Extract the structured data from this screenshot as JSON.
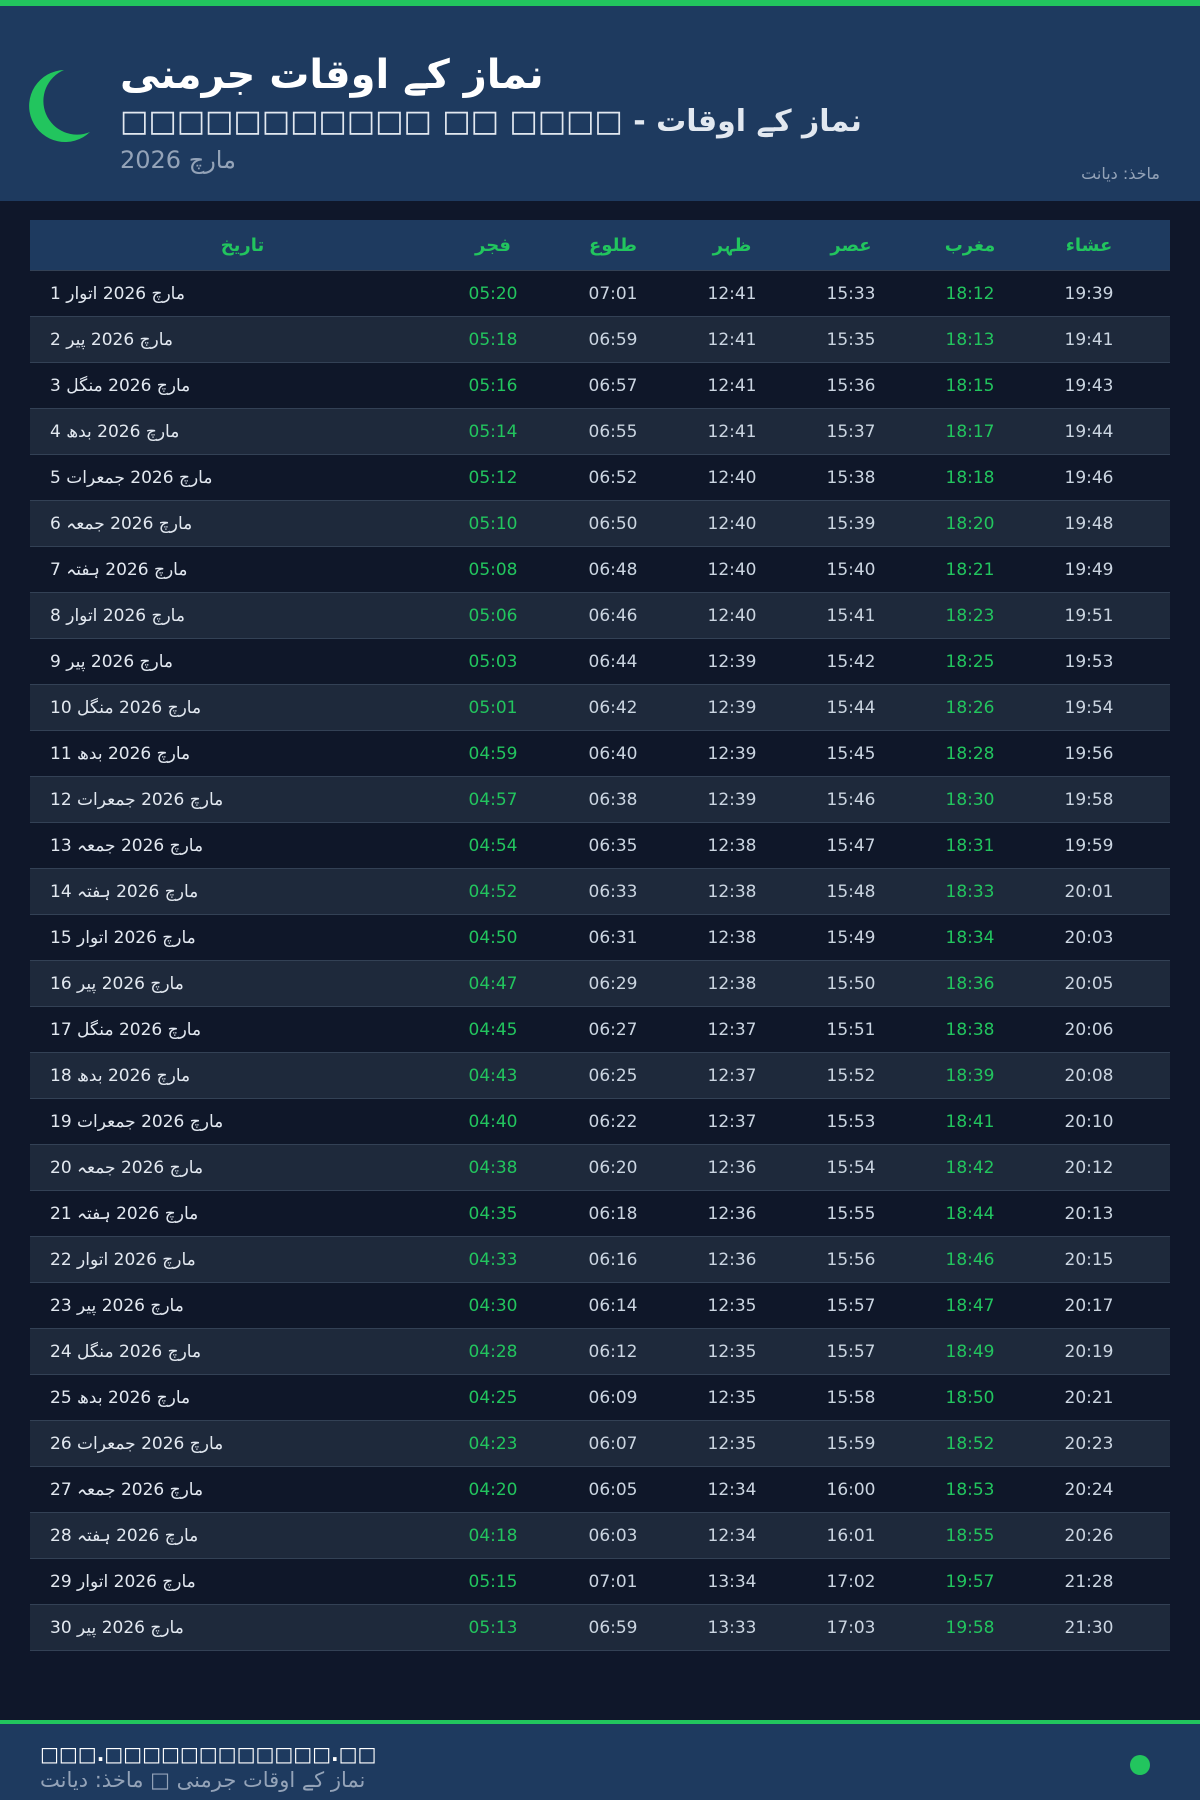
{
  "header": {
    "title": "نماز کے اوقات جرمنی",
    "subtitle": "□□□□□□□□□□□ □□ □□□□ - نماز کے اوقات",
    "month": "مارچ 2026",
    "source": "ماخذ: دیانت"
  },
  "colors": {
    "accent": "#22c55e",
    "header_bg": "#1e3a5f",
    "page_bg": "#0f172a"
  },
  "table": {
    "columns": [
      "تاریخ",
      "فجر",
      "طلوع",
      "ظہر",
      "عصر",
      "مغرب",
      "عشاء"
    ],
    "rows": [
      [
        "1 مارچ 2026 اتوار",
        "05:20",
        "07:01",
        "12:41",
        "15:33",
        "18:12",
        "19:39"
      ],
      [
        "2 مارچ 2026 پیر",
        "05:18",
        "06:59",
        "12:41",
        "15:35",
        "18:13",
        "19:41"
      ],
      [
        "3 مارچ 2026 منگل",
        "05:16",
        "06:57",
        "12:41",
        "15:36",
        "18:15",
        "19:43"
      ],
      [
        "4 مارچ 2026 بدھ",
        "05:14",
        "06:55",
        "12:41",
        "15:37",
        "18:17",
        "19:44"
      ],
      [
        "5 مارچ 2026 جمعرات",
        "05:12",
        "06:52",
        "12:40",
        "15:38",
        "18:18",
        "19:46"
      ],
      [
        "6 مارچ 2026 جمعہ",
        "05:10",
        "06:50",
        "12:40",
        "15:39",
        "18:20",
        "19:48"
      ],
      [
        "7 مارچ 2026 ہفتہ",
        "05:08",
        "06:48",
        "12:40",
        "15:40",
        "18:21",
        "19:49"
      ],
      [
        "8 مارچ 2026 اتوار",
        "05:06",
        "06:46",
        "12:40",
        "15:41",
        "18:23",
        "19:51"
      ],
      [
        "9 مارچ 2026 پیر",
        "05:03",
        "06:44",
        "12:39",
        "15:42",
        "18:25",
        "19:53"
      ],
      [
        "10 مارچ 2026 منگل",
        "05:01",
        "06:42",
        "12:39",
        "15:44",
        "18:26",
        "19:54"
      ],
      [
        "11 مارچ 2026 بدھ",
        "04:59",
        "06:40",
        "12:39",
        "15:45",
        "18:28",
        "19:56"
      ],
      [
        "12 مارچ 2026 جمعرات",
        "04:57",
        "06:38",
        "12:39",
        "15:46",
        "18:30",
        "19:58"
      ],
      [
        "13 مارچ 2026 جمعہ",
        "04:54",
        "06:35",
        "12:38",
        "15:47",
        "18:31",
        "19:59"
      ],
      [
        "14 مارچ 2026 ہفتہ",
        "04:52",
        "06:33",
        "12:38",
        "15:48",
        "18:33",
        "20:01"
      ],
      [
        "15 مارچ 2026 اتوار",
        "04:50",
        "06:31",
        "12:38",
        "15:49",
        "18:34",
        "20:03"
      ],
      [
        "16 مارچ 2026 پیر",
        "04:47",
        "06:29",
        "12:38",
        "15:50",
        "18:36",
        "20:05"
      ],
      [
        "17 مارچ 2026 منگل",
        "04:45",
        "06:27",
        "12:37",
        "15:51",
        "18:38",
        "20:06"
      ],
      [
        "18 مارچ 2026 بدھ",
        "04:43",
        "06:25",
        "12:37",
        "15:52",
        "18:39",
        "20:08"
      ],
      [
        "19 مارچ 2026 جمعرات",
        "04:40",
        "06:22",
        "12:37",
        "15:53",
        "18:41",
        "20:10"
      ],
      [
        "20 مارچ 2026 جمعہ",
        "04:38",
        "06:20",
        "12:36",
        "15:54",
        "18:42",
        "20:12"
      ],
      [
        "21 مارچ 2026 ہفتہ",
        "04:35",
        "06:18",
        "12:36",
        "15:55",
        "18:44",
        "20:13"
      ],
      [
        "22 مارچ 2026 اتوار",
        "04:33",
        "06:16",
        "12:36",
        "15:56",
        "18:46",
        "20:15"
      ],
      [
        "23 مارچ 2026 پیر",
        "04:30",
        "06:14",
        "12:35",
        "15:57",
        "18:47",
        "20:17"
      ],
      [
        "24 مارچ 2026 منگل",
        "04:28",
        "06:12",
        "12:35",
        "15:57",
        "18:49",
        "20:19"
      ],
      [
        "25 مارچ 2026 بدھ",
        "04:25",
        "06:09",
        "12:35",
        "15:58",
        "18:50",
        "20:21"
      ],
      [
        "26 مارچ 2026 جمعرات",
        "04:23",
        "06:07",
        "12:35",
        "15:59",
        "18:52",
        "20:23"
      ],
      [
        "27 مارچ 2026 جمعہ",
        "04:20",
        "06:05",
        "12:34",
        "16:00",
        "18:53",
        "20:24"
      ],
      [
        "28 مارچ 2026 ہفتہ",
        "04:18",
        "06:03",
        "12:34",
        "16:01",
        "18:55",
        "20:26"
      ],
      [
        "29 مارچ 2026 اتوار",
        "05:15",
        "07:01",
        "13:34",
        "17:02",
        "19:57",
        "21:28"
      ],
      [
        "30 مارچ 2026 پیر",
        "05:13",
        "06:59",
        "13:33",
        "17:03",
        "19:58",
        "21:30"
      ]
    ]
  },
  "footer": {
    "site": "□□□.□□□□□□□□□□□□.□□",
    "text": "نماز کے اوقات جرمنی □ ماخذ: دیانت"
  }
}
